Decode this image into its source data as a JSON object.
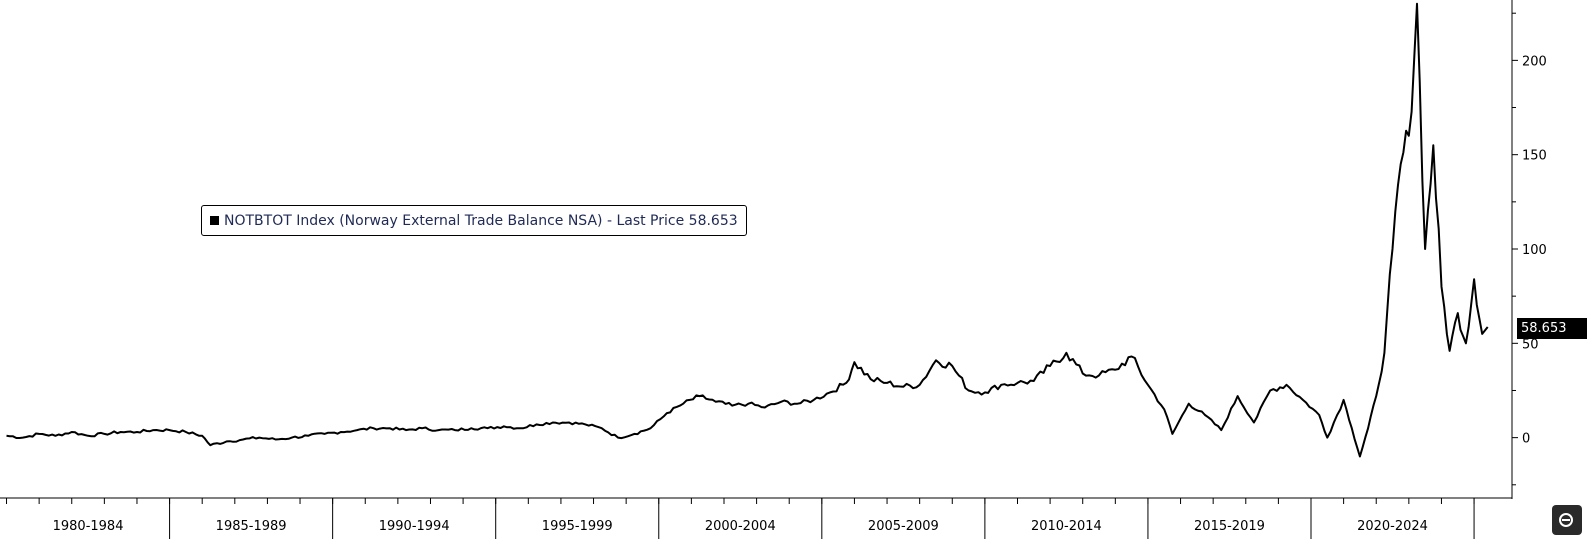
{
  "legend": {
    "text": "NOTBTOT Index (Norway External Trade Balance NSA) - Last Price 58.653"
  },
  "last_price_label": "58.653",
  "chart_data": {
    "type": "line",
    "title": "",
    "xlabel": "",
    "ylabel": "",
    "ylim": [
      -32,
      232
    ],
    "y_ticks": [
      0,
      50,
      100,
      150,
      200
    ],
    "x_ticks": [
      "1980-1984",
      "1985-1989",
      "1990-1994",
      "1995-1999",
      "2000-2004",
      "2005-2009",
      "2010-2014",
      "2015-2019",
      "2020-2024"
    ],
    "grid": false,
    "legend_position": "top-left",
    "series": [
      {
        "name": "NOTBTOT Index (Norway External Trade Balance NSA)",
        "color": "#000000",
        "last_value": 58.653,
        "points": [
          [
            "1980-01",
            1
          ],
          [
            "1980-07",
            0
          ],
          [
            "1981-01",
            2
          ],
          [
            "1981-07",
            1
          ],
          [
            "1982-01",
            3
          ],
          [
            "1982-07",
            1
          ],
          [
            "1983-01",
            2
          ],
          [
            "1983-07",
            3
          ],
          [
            "1984-01",
            3
          ],
          [
            "1984-07",
            4
          ],
          [
            "1985-01",
            4
          ],
          [
            "1985-07",
            3
          ],
          [
            "1986-01",
            1
          ],
          [
            "1986-04",
            -4
          ],
          [
            "1986-10",
            -2
          ],
          [
            "1987-04",
            -1
          ],
          [
            "1987-10",
            0
          ],
          [
            "1988-04",
            -1
          ],
          [
            "1988-10",
            0
          ],
          [
            "1989-04",
            1
          ],
          [
            "1989-10",
            2
          ],
          [
            "1990-04",
            3
          ],
          [
            "1990-10",
            4
          ],
          [
            "1991-04",
            5
          ],
          [
            "1991-10",
            5
          ],
          [
            "1992-04",
            4
          ],
          [
            "1992-10",
            5
          ],
          [
            "1993-04",
            4
          ],
          [
            "1993-10",
            4
          ],
          [
            "1994-04",
            5
          ],
          [
            "1994-10",
            5
          ],
          [
            "1995-04",
            6
          ],
          [
            "1995-10",
            5
          ],
          [
            "1996-04",
            7
          ],
          [
            "1996-10",
            8
          ],
          [
            "1997-04",
            8
          ],
          [
            "1997-10",
            7
          ],
          [
            "1998-04",
            5
          ],
          [
            "1998-10",
            0
          ],
          [
            "1999-04",
            2
          ],
          [
            "1999-10",
            5
          ],
          [
            "2000-04",
            13
          ],
          [
            "2000-10",
            18
          ],
          [
            "2001-04",
            22
          ],
          [
            "2001-10",
            19
          ],
          [
            "2002-04",
            17
          ],
          [
            "2002-10",
            18
          ],
          [
            "2003-04",
            16
          ],
          [
            "2003-10",
            19
          ],
          [
            "2004-04",
            18
          ],
          [
            "2004-10",
            20
          ],
          [
            "2005-04",
            24
          ],
          [
            "2005-10",
            29
          ],
          [
            "2006-01",
            40
          ],
          [
            "2006-07",
            31
          ],
          [
            "2007-01",
            29
          ],
          [
            "2007-07",
            27
          ],
          [
            "2008-01",
            28
          ],
          [
            "2008-07",
            41
          ],
          [
            "2009-01",
            38
          ],
          [
            "2009-07",
            25
          ],
          [
            "2010-01",
            24
          ],
          [
            "2010-07",
            28
          ],
          [
            "2011-01",
            29
          ],
          [
            "2011-07",
            30
          ],
          [
            "2012-01",
            38
          ],
          [
            "2012-07",
            45
          ],
          [
            "2013-01",
            34
          ],
          [
            "2013-07",
            33
          ],
          [
            "2014-01",
            36
          ],
          [
            "2014-07",
            43
          ],
          [
            "2015-01",
            28
          ],
          [
            "2015-07",
            15
          ],
          [
            "2015-10",
            2
          ],
          [
            "2016-04",
            18
          ],
          [
            "2016-10",
            12
          ],
          [
            "2017-04",
            4
          ],
          [
            "2017-10",
            22
          ],
          [
            "2018-04",
            8
          ],
          [
            "2018-10",
            25
          ],
          [
            "2019-04",
            28
          ],
          [
            "2019-10",
            20
          ],
          [
            "2020-04",
            12
          ],
          [
            "2020-07",
            0
          ],
          [
            "2021-01",
            20
          ],
          [
            "2021-04",
            5
          ],
          [
            "2021-07",
            -10
          ],
          [
            "2021-10",
            5
          ],
          [
            "2022-01",
            22
          ],
          [
            "2022-04",
            45
          ],
          [
            "2022-07",
            100
          ],
          [
            "2022-10",
            145
          ],
          [
            "2023-01",
            160
          ],
          [
            "2023-04",
            230
          ],
          [
            "2023-07",
            100
          ],
          [
            "2023-10",
            155
          ],
          [
            "2024-01",
            80
          ],
          [
            "2024-04",
            46
          ],
          [
            "2024-07",
            66
          ],
          [
            "2024-10",
            50
          ],
          [
            "2025-01",
            84
          ],
          [
            "2025-04",
            55
          ],
          [
            "2025-06",
            58.653
          ]
        ]
      }
    ]
  }
}
